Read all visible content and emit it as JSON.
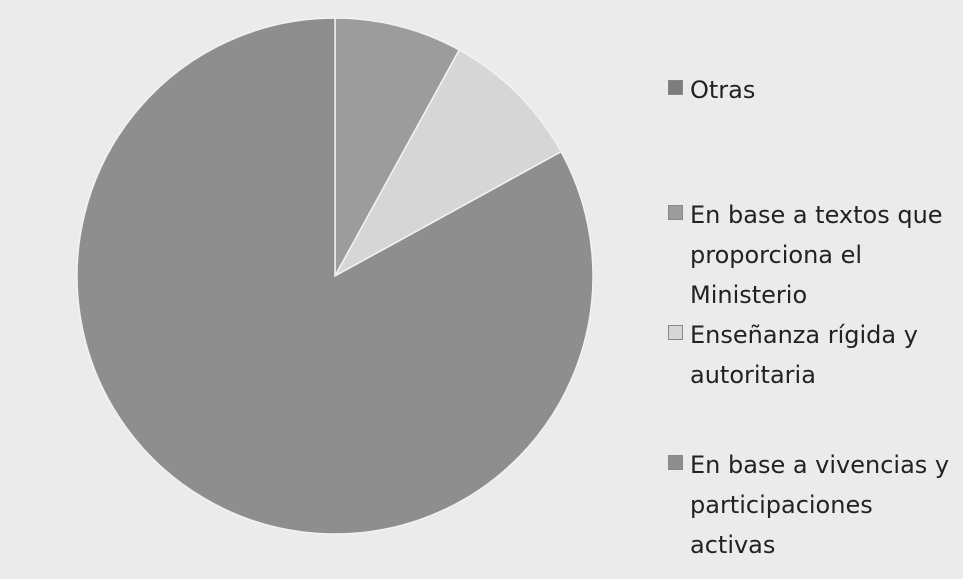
{
  "chart_data": {
    "type": "pie",
    "categories": [
      "Otras",
      "En base a textos que proporciona el Ministerio",
      "Enseñanza rígida y autoritaria",
      "En base a vivencias y participaciones activas"
    ],
    "values": [
      0,
      8,
      9,
      83
    ],
    "colors": [
      "#7d7d7d",
      "#9c9c9c",
      "#d6d6d6",
      "#8e8e8e"
    ]
  }
}
